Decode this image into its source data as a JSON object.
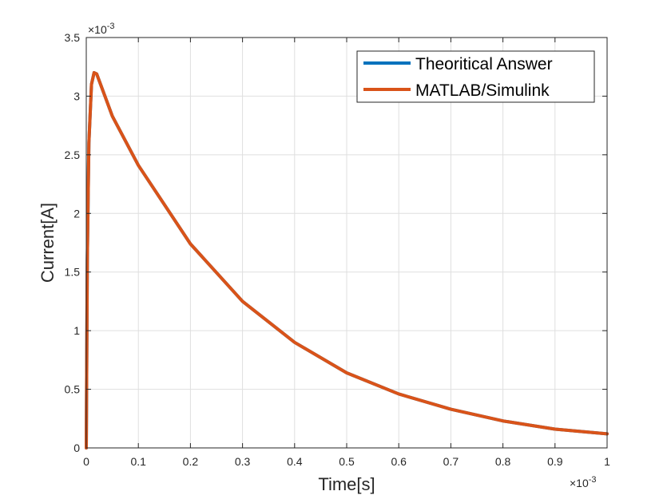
{
  "chart_data": {
    "type": "line",
    "title": "",
    "xlabel": "Time[s]",
    "ylabel": "Current[A]",
    "x_multiplier_label": "×10",
    "x_multiplier_exp": "-3",
    "y_multiplier_label": "×10",
    "y_multiplier_exp": "-3",
    "xlim": [
      0,
      1
    ],
    "ylim": [
      0,
      3.5
    ],
    "grid": true,
    "legend_position": "top-right",
    "x_ticks": [
      "0",
      "0.1",
      "0.2",
      "0.3",
      "0.4",
      "0.5",
      "0.6",
      "0.7",
      "0.8",
      "0.9",
      "1"
    ],
    "y_ticks": [
      "0",
      "0.5",
      "1",
      "1.5",
      "2",
      "2.5",
      "3",
      "3.5"
    ],
    "x_tick_values": [
      0,
      0.1,
      0.2,
      0.3,
      0.4,
      0.5,
      0.6,
      0.7,
      0.8,
      0.9,
      1
    ],
    "y_tick_values": [
      0,
      0.5,
      1,
      1.5,
      2,
      2.5,
      3,
      3.5
    ],
    "series": [
      {
        "name": "Theoritical Answer",
        "color": "#0072BD",
        "x": [
          0,
          0.002,
          0.005,
          0.01,
          0.015,
          0.02,
          0.05,
          0.1,
          0.2,
          0.3,
          0.4,
          0.5,
          0.6,
          0.7,
          0.8,
          0.9,
          1.0
        ],
        "values": [
          0,
          1.6,
          2.6,
          3.1,
          3.2,
          3.19,
          2.83,
          2.41,
          1.74,
          1.25,
          0.9,
          0.64,
          0.46,
          0.33,
          0.23,
          0.16,
          0.12
        ]
      },
      {
        "name": "MATLAB/Simulink",
        "color": "#D95319",
        "x": [
          0,
          0.002,
          0.005,
          0.01,
          0.015,
          0.02,
          0.05,
          0.1,
          0.2,
          0.3,
          0.4,
          0.5,
          0.6,
          0.7,
          0.8,
          0.9,
          1.0
        ],
        "values": [
          0,
          1.6,
          2.6,
          3.1,
          3.2,
          3.19,
          2.83,
          2.41,
          1.74,
          1.25,
          0.9,
          0.64,
          0.46,
          0.33,
          0.23,
          0.16,
          0.12
        ]
      }
    ]
  }
}
